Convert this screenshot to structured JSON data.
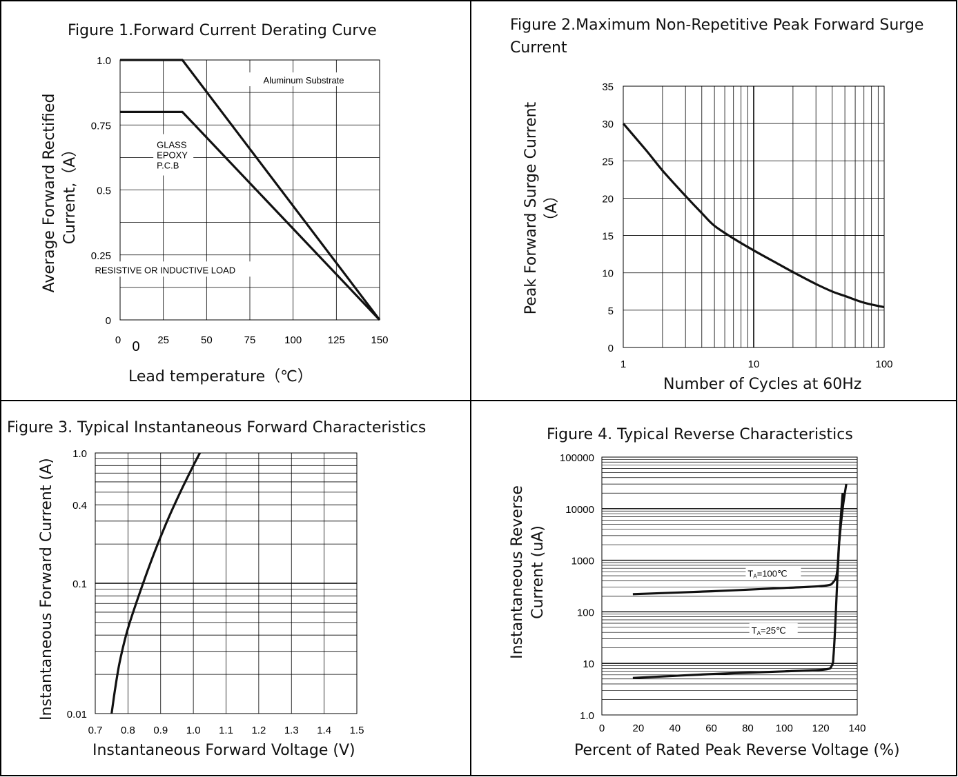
{
  "page": {
    "colors": {
      "border": "#000000",
      "grid": "#000000",
      "curve": "#111111"
    }
  },
  "chart_data": [
    {
      "id": "fig1",
      "type": "line",
      "title": "Figure 1.Forward Current Derating Curve",
      "xlabel": "Lead temperature（℃）",
      "ylabel_lines": [
        "Average Forward Rectified",
        "Current,（A）"
      ],
      "xlim": [
        0,
        150
      ],
      "ylim": [
        0,
        1.0
      ],
      "x_ticks": [
        0,
        25,
        50,
        75,
        100,
        125,
        150
      ],
      "x_tick_labels": [
        "0",
        "25",
        "50",
        "75",
        "100",
        "125",
        "150"
      ],
      "x_origin_label": "0",
      "y_ticks": [
        0,
        0.25,
        0.5,
        0.75,
        1.0
      ],
      "y_tick_labels": [
        "0",
        "0.25",
        "0.5",
        "0.75",
        "1.0"
      ],
      "grid": true,
      "series": [
        {
          "name": "Aluminum Substrate",
          "x": [
            0,
            36,
            150
          ],
          "y": [
            1.0,
            1.0,
            0
          ]
        },
        {
          "name": "",
          "x": [
            0,
            36,
            150
          ],
          "y": [
            0.8,
            0.8,
            0
          ]
        }
      ],
      "annotations": [
        {
          "text": "Aluminum Substrate",
          "x": 75,
          "y": 0.915
        },
        {
          "text": "GLASS",
          "x": 26,
          "y": 0.675
        },
        {
          "text": "EPOXY",
          "x": 26,
          "y": 0.635
        },
        {
          "text": "P.C.B",
          "x": 26,
          "y": 0.595
        },
        {
          "text": "RESISTIVE OR INDUCTIVE LOAD",
          "x": 52,
          "y": 0.185
        }
      ]
    },
    {
      "id": "fig2",
      "type": "line",
      "title": "Figure 2.Maximum Non-Repetitive Peak Forward Surge Current",
      "xlabel": "Number of Cycles at 60Hz",
      "ylabel_lines": [
        "Peak Forward Surge Current",
        "（A）"
      ],
      "xscale": "log",
      "xlim": [
        1,
        100
      ],
      "ylim": [
        0,
        35
      ],
      "x_ticks": [
        1,
        10,
        100
      ],
      "x_tick_labels": [
        "1",
        "10",
        "100"
      ],
      "y_ticks": [
        0,
        5,
        10,
        15,
        20,
        25,
        30,
        35
      ],
      "y_tick_labels": [
        "0",
        "5",
        "10",
        "15",
        "20",
        "25",
        "30",
        "35"
      ],
      "grid": true,
      "series": [
        {
          "name": "",
          "x": [
            1,
            1.5,
            2,
            3,
            4,
            5,
            7,
            10,
            15,
            20,
            30,
            40,
            50,
            70,
            100
          ],
          "y": [
            30,
            26.4,
            23.7,
            20.3,
            18.0,
            16.3,
            14.6,
            13.0,
            11.3,
            10.1,
            8.5,
            7.5,
            6.9,
            6.0,
            5.4
          ]
        }
      ]
    },
    {
      "id": "fig3",
      "type": "line",
      "title": "Figure 3. Typical Instantaneous Forward Characteristics",
      "xlabel": "Instantaneous Forward Voltage (V)",
      "ylabel_lines": [
        "Instantaneous Forward Current (A)"
      ],
      "yscale": "log",
      "xlim": [
        0.7,
        1.5
      ],
      "ylim": [
        0.01,
        1.0
      ],
      "x_ticks": [
        0.7,
        0.8,
        0.9,
        1.0,
        1.1,
        1.2,
        1.3,
        1.4,
        1.5
      ],
      "x_tick_labels": [
        "0.7",
        "0.8",
        "0.9",
        "1.0",
        "1.1",
        "1.2",
        "1.3",
        "1.4",
        "1.5"
      ],
      "y_ticks": [
        0.01,
        0.1,
        0.4,
        1.0
      ],
      "y_tick_labels": [
        "0.01",
        "0.1",
        "0.4",
        "1.0"
      ],
      "grid": true,
      "series": [
        {
          "name": "",
          "x": [
            0.75,
            0.76,
            0.775,
            0.8,
            0.84,
            0.88,
            0.92,
            0.96,
            1.0,
            1.02
          ],
          "y": [
            0.01,
            0.015,
            0.025,
            0.045,
            0.09,
            0.17,
            0.3,
            0.5,
            0.8,
            1.0
          ]
        }
      ]
    },
    {
      "id": "fig4",
      "type": "line",
      "title": "Figure 4. Typical Reverse Characteristics",
      "xlabel": "Percent of  Rated Peak Reverse Voltage (%)",
      "ylabel_lines": [
        "Instantaneous Reverse",
        "Current (uA)"
      ],
      "yscale": "log",
      "xlim": [
        0,
        140
      ],
      "ylim": [
        1,
        100000
      ],
      "x_ticks": [
        0,
        20,
        40,
        60,
        80,
        100,
        120,
        140
      ],
      "x_tick_labels": [
        "0",
        "20",
        "40",
        "60",
        "80",
        "100",
        "120",
        "140"
      ],
      "y_ticks": [
        1,
        10,
        100,
        1000,
        10000,
        100000
      ],
      "y_tick_labels": [
        "1.0",
        "10",
        "100",
        "1000",
        "10000",
        "100000"
      ],
      "grid": true,
      "series": [
        {
          "name": "TA=100℃",
          "x": [
            17,
            60,
            100,
            122,
            127,
            129,
            130,
            132,
            134
          ],
          "y": [
            220,
            250,
            290,
            320,
            380,
            600,
            2000,
            10000,
            30000
          ]
        },
        {
          "name": "TA=25℃",
          "x": [
            17,
            60,
            100,
            122,
            126,
            127,
            128,
            130,
            132
          ],
          "y": [
            5.2,
            6.2,
            7.0,
            7.6,
            9,
            14,
            60,
            2000,
            20000
          ]
        }
      ],
      "labels": [
        {
          "main": "T",
          "sub": "A",
          "rest": "=100℃"
        },
        {
          "main": "T",
          "sub": "A",
          "rest": "=25℃"
        }
      ]
    }
  ]
}
